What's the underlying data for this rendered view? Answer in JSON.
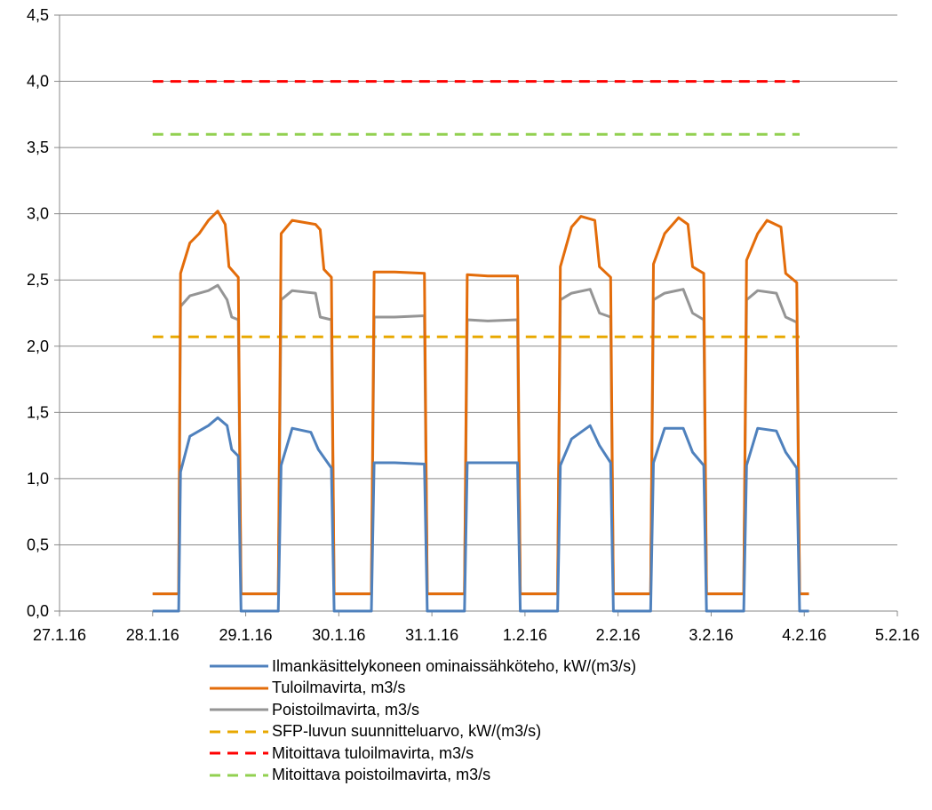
{
  "chart_data": {
    "type": "line",
    "x_axis": {
      "type": "date",
      "range": [
        "27.1.16",
        "5.2.16"
      ],
      "tick_labels": [
        "27.1.16",
        "28.1.16",
        "29.1.16",
        "30.1.16",
        "31.1.16",
        "1.2.16",
        "2.2.16",
        "3.2.16",
        "4.2.16",
        "5.2.16"
      ]
    },
    "y_axis": {
      "range": [
        0,
        4.5
      ],
      "tick_labels": [
        "0,0",
        "0,5",
        "1,0",
        "1,5",
        "2,0",
        "2,5",
        "3,0",
        "3,5",
        "4,0",
        "4,5"
      ],
      "grid": true
    },
    "series": [
      {
        "name": "Ilmankäsittelykoneen ominaissähköteho, kW/(m3/s)",
        "color": "#4f81bd",
        "style": "solid",
        "points": [
          [
            28.0,
            0.0
          ],
          [
            28.28,
            0.0
          ],
          [
            28.3,
            1.05
          ],
          [
            28.4,
            1.32
          ],
          [
            28.6,
            1.4
          ],
          [
            28.7,
            1.46
          ],
          [
            28.8,
            1.4
          ],
          [
            28.85,
            1.22
          ],
          [
            28.92,
            1.17
          ],
          [
            28.95,
            0.0
          ],
          [
            29.35,
            0.0
          ],
          [
            29.38,
            1.1
          ],
          [
            29.5,
            1.38
          ],
          [
            29.7,
            1.35
          ],
          [
            29.78,
            1.22
          ],
          [
            29.92,
            1.08
          ],
          [
            29.95,
            0.0
          ],
          [
            30.35,
            0.0
          ],
          [
            30.38,
            1.12
          ],
          [
            30.6,
            1.12
          ],
          [
            30.92,
            1.11
          ],
          [
            30.95,
            0.0
          ],
          [
            31.35,
            0.0
          ],
          [
            31.38,
            1.12
          ],
          [
            31.7,
            1.12
          ],
          [
            31.92,
            1.12
          ],
          [
            31.95,
            0.0
          ],
          [
            32.35,
            0.0
          ],
          [
            32.38,
            1.1
          ],
          [
            32.5,
            1.3
          ],
          [
            32.7,
            1.4
          ],
          [
            32.8,
            1.25
          ],
          [
            32.92,
            1.12
          ],
          [
            32.95,
            0.0
          ],
          [
            33.35,
            0.0
          ],
          [
            33.38,
            1.12
          ],
          [
            33.5,
            1.38
          ],
          [
            33.7,
            1.38
          ],
          [
            33.8,
            1.2
          ],
          [
            33.92,
            1.1
          ],
          [
            33.95,
            0.0
          ],
          [
            34.35,
            0.0
          ],
          [
            34.38,
            1.1
          ],
          [
            34.5,
            1.38
          ],
          [
            34.7,
            1.36
          ],
          [
            34.8,
            1.2
          ],
          [
            34.92,
            1.08
          ],
          [
            34.95,
            0.0
          ],
          [
            35.05,
            0.0
          ]
        ]
      },
      {
        "name": "Tuloilmavirta, m3/s",
        "color": "#e36c0a",
        "style": "solid",
        "points": [
          [
            28.0,
            0.13
          ],
          [
            28.28,
            0.13
          ],
          [
            28.3,
            2.55
          ],
          [
            28.4,
            2.78
          ],
          [
            28.5,
            2.85
          ],
          [
            28.6,
            2.95
          ],
          [
            28.7,
            3.02
          ],
          [
            28.78,
            2.92
          ],
          [
            28.82,
            2.6
          ],
          [
            28.92,
            2.52
          ],
          [
            28.95,
            0.13
          ],
          [
            29.35,
            0.13
          ],
          [
            29.38,
            2.85
          ],
          [
            29.5,
            2.95
          ],
          [
            29.75,
            2.92
          ],
          [
            29.8,
            2.88
          ],
          [
            29.84,
            2.58
          ],
          [
            29.92,
            2.52
          ],
          [
            29.95,
            0.13
          ],
          [
            30.35,
            0.13
          ],
          [
            30.38,
            2.56
          ],
          [
            30.6,
            2.56
          ],
          [
            30.92,
            2.55
          ],
          [
            30.95,
            0.13
          ],
          [
            31.35,
            0.13
          ],
          [
            31.38,
            2.54
          ],
          [
            31.6,
            2.53
          ],
          [
            31.92,
            2.53
          ],
          [
            31.95,
            0.13
          ],
          [
            32.35,
            0.13
          ],
          [
            32.38,
            2.6
          ],
          [
            32.5,
            2.9
          ],
          [
            32.6,
            2.98
          ],
          [
            32.75,
            2.95
          ],
          [
            32.8,
            2.6
          ],
          [
            32.92,
            2.52
          ],
          [
            32.95,
            0.13
          ],
          [
            33.35,
            0.13
          ],
          [
            33.38,
            2.62
          ],
          [
            33.5,
            2.85
          ],
          [
            33.65,
            2.97
          ],
          [
            33.75,
            2.92
          ],
          [
            33.8,
            2.6
          ],
          [
            33.92,
            2.55
          ],
          [
            33.95,
            0.13
          ],
          [
            34.35,
            0.13
          ],
          [
            34.38,
            2.65
          ],
          [
            34.5,
            2.85
          ],
          [
            34.6,
            2.95
          ],
          [
            34.75,
            2.9
          ],
          [
            34.8,
            2.55
          ],
          [
            34.92,
            2.48
          ],
          [
            34.95,
            0.13
          ],
          [
            35.05,
            0.13
          ]
        ]
      },
      {
        "name": "Poistoilmavirta, m3/s",
        "color": "#959595",
        "style": "solid",
        "points": [
          [
            28.0,
            0.13
          ],
          [
            28.28,
            0.13
          ],
          [
            28.3,
            2.3
          ],
          [
            28.4,
            2.38
          ],
          [
            28.6,
            2.42
          ],
          [
            28.7,
            2.46
          ],
          [
            28.8,
            2.35
          ],
          [
            28.85,
            2.22
          ],
          [
            28.92,
            2.2
          ],
          [
            28.95,
            0.13
          ],
          [
            29.35,
            0.13
          ],
          [
            29.38,
            2.35
          ],
          [
            29.5,
            2.42
          ],
          [
            29.75,
            2.4
          ],
          [
            29.8,
            2.22
          ],
          [
            29.92,
            2.2
          ],
          [
            29.95,
            0.13
          ],
          [
            30.35,
            0.13
          ],
          [
            30.38,
            2.22
          ],
          [
            30.6,
            2.22
          ],
          [
            30.92,
            2.23
          ],
          [
            30.95,
            0.13
          ],
          [
            31.35,
            0.13
          ],
          [
            31.38,
            2.2
          ],
          [
            31.6,
            2.19
          ],
          [
            31.92,
            2.2
          ],
          [
            31.95,
            0.13
          ],
          [
            32.35,
            0.13
          ],
          [
            32.38,
            2.35
          ],
          [
            32.5,
            2.4
          ],
          [
            32.7,
            2.43
          ],
          [
            32.8,
            2.25
          ],
          [
            32.92,
            2.22
          ],
          [
            32.95,
            0.13
          ],
          [
            33.35,
            0.13
          ],
          [
            33.38,
            2.35
          ],
          [
            33.5,
            2.4
          ],
          [
            33.7,
            2.43
          ],
          [
            33.8,
            2.25
          ],
          [
            33.92,
            2.2
          ],
          [
            33.95,
            0.13
          ],
          [
            34.35,
            0.13
          ],
          [
            34.38,
            2.35
          ],
          [
            34.5,
            2.42
          ],
          [
            34.7,
            2.4
          ],
          [
            34.8,
            2.22
          ],
          [
            34.92,
            2.18
          ],
          [
            34.95,
            0.13
          ],
          [
            35.05,
            0.13
          ]
        ]
      },
      {
        "name": "SFP-luvun suunnitteluarvo, kW/(m3/s)",
        "color": "#e8a800",
        "style": "dashed",
        "points": [
          [
            28.0,
            2.07
          ],
          [
            34.95,
            2.07
          ]
        ]
      },
      {
        "name": "Mitoittava tuloilmavirta, m3/s",
        "color": "#ff0000",
        "style": "dashed",
        "points": [
          [
            28.0,
            4.0
          ],
          [
            34.95,
            4.0
          ]
        ]
      },
      {
        "name": "Mitoittava poistoilmavirta, m3/s",
        "color": "#92d050",
        "style": "dashed",
        "points": [
          [
            28.0,
            3.6
          ],
          [
            34.95,
            3.6
          ]
        ]
      }
    ],
    "legend_position": "bottom"
  }
}
